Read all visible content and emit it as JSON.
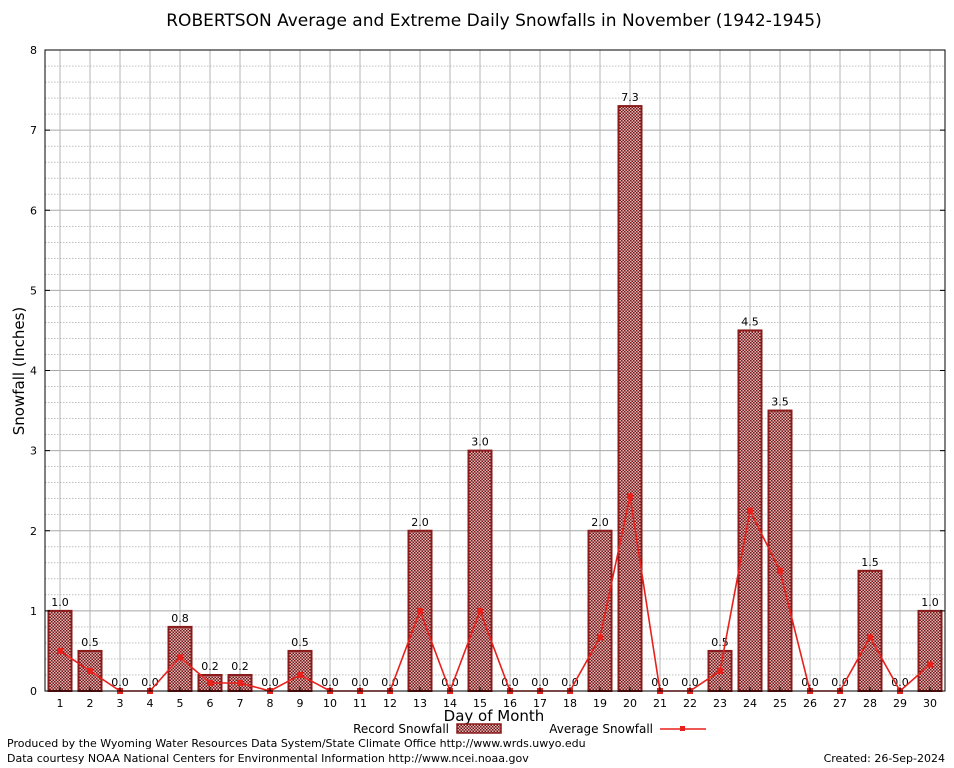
{
  "chart_data": {
    "type": "bar",
    "title": "ROBERTSON Average and Extreme Daily Snowfalls in November (1942-1945)",
    "xlabel": "Day of Month",
    "ylabel": "Snowfall (Inches)",
    "ylim": [
      0,
      8
    ],
    "yticks": [
      "0",
      "1",
      "2",
      "3",
      "4",
      "5",
      "6",
      "7",
      "8"
    ],
    "categories": [
      "1",
      "2",
      "3",
      "4",
      "5",
      "6",
      "7",
      "8",
      "9",
      "10",
      "11",
      "12",
      "13",
      "14",
      "15",
      "16",
      "17",
      "18",
      "19",
      "20",
      "21",
      "22",
      "23",
      "24",
      "25",
      "26",
      "27",
      "28",
      "29",
      "30"
    ],
    "series": [
      {
        "name": "Record Snowfall",
        "type": "bar",
        "color": "#8b1a1a",
        "values": [
          1.0,
          0.5,
          0.0,
          0.0,
          0.8,
          0.2,
          0.2,
          0.0,
          0.5,
          0.0,
          0.0,
          0.0,
          2.0,
          0.0,
          3.0,
          0.0,
          0.0,
          0.0,
          2.0,
          7.3,
          0.0,
          0.0,
          0.5,
          4.5,
          3.5,
          0.0,
          0.0,
          1.5,
          0.0,
          1.0
        ],
        "labels": [
          "1.0",
          "0.5",
          "0.0",
          "0.0",
          "0.8",
          "0.2",
          "0.2",
          "0.0",
          "0.5",
          "0.0",
          "0.0",
          "0.0",
          "2.0",
          "0.0",
          "3.0",
          "0.0",
          "0.0",
          "0.0",
          "2.0",
          "7.3",
          "0.0",
          "0.0",
          "0.5",
          "4.5",
          "3.5",
          "0.0",
          "0.0",
          "1.5",
          "0.0",
          "1.0"
        ]
      },
      {
        "name": "Average Snowfall",
        "type": "line",
        "color": "#e8211c",
        "values": [
          0.5,
          0.25,
          0.0,
          0.0,
          0.42,
          0.1,
          0.1,
          0.0,
          0.2,
          0.0,
          0.0,
          0.0,
          1.0,
          0.0,
          1.0,
          0.0,
          0.0,
          0.0,
          0.67,
          2.43,
          0.0,
          0.0,
          0.25,
          2.25,
          1.5,
          0.0,
          0.0,
          0.67,
          0.0,
          0.33
        ]
      }
    ],
    "grid": true,
    "legend": "bottom"
  },
  "footer": {
    "credit_line1": "Produced by the Wyoming Water Resources Data System/State Climate Office http://www.wrds.uwyo.edu",
    "credit_line2": "Data courtesy NOAA National Centers for Environmental Information http://www.ncei.noaa.gov",
    "created": "Created:  26-Sep-2024"
  }
}
